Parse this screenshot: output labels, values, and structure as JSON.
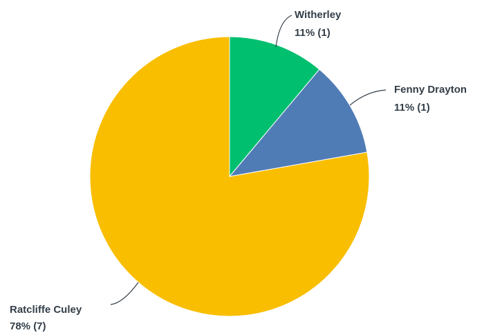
{
  "chart_data": {
    "type": "pie",
    "start_angle_deg": 0,
    "direction": "clockwise",
    "slices": [
      {
        "label": "Witherley",
        "percent_label": "11% (1)",
        "value": 1,
        "color": "#00bf6f"
      },
      {
        "label": "Fenny Drayton",
        "percent_label": "11% (1)",
        "value": 1,
        "color": "#507cb6"
      },
      {
        "label": "Ratcliffe Culey",
        "percent_label": "78% (7)",
        "value": 7,
        "color": "#f9be00"
      }
    ]
  }
}
